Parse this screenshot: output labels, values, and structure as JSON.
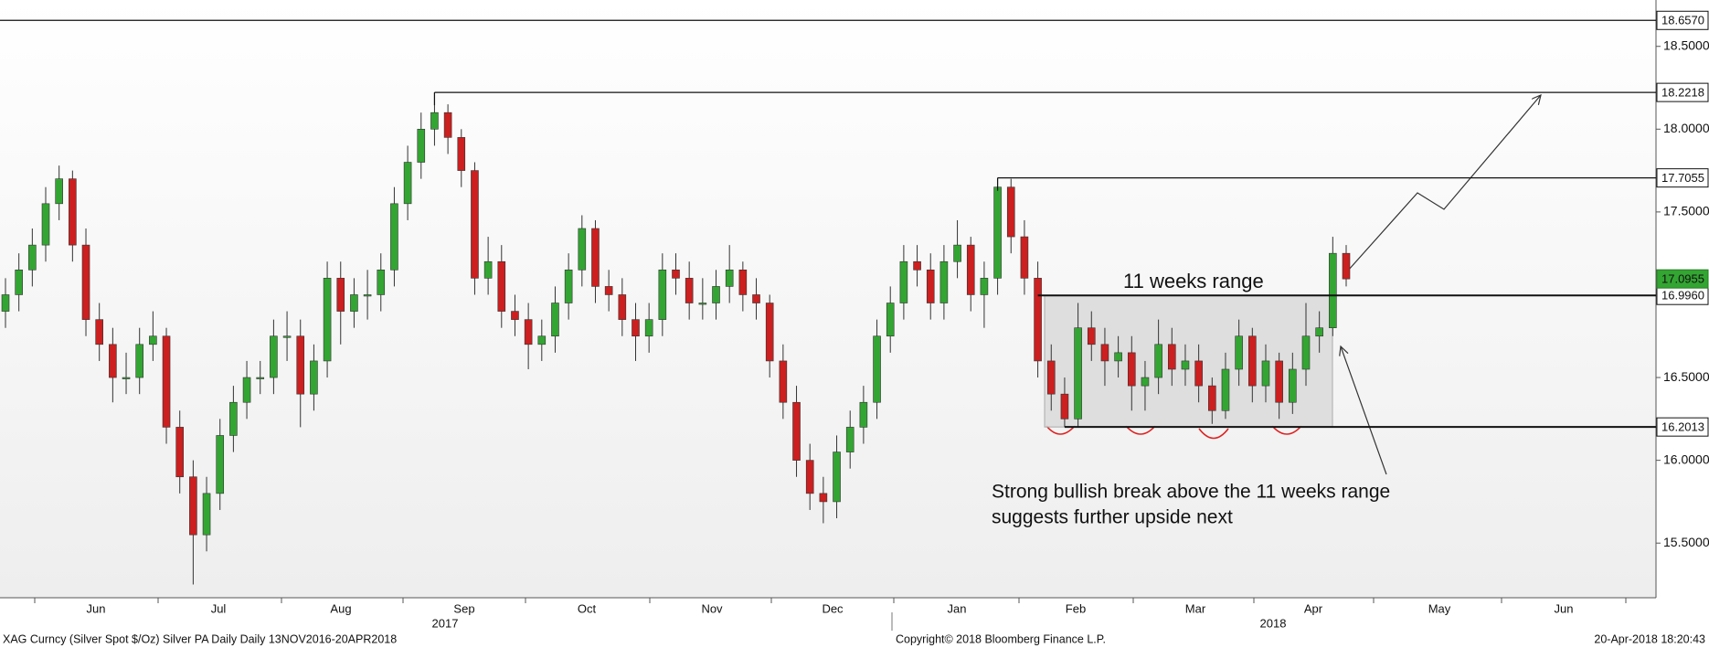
{
  "chart_data": {
    "type": "candlestick",
    "ylim": [
      15.17,
      18.78
    ],
    "yticks": [
      {
        "value": 15.5,
        "label": "15.5000"
      },
      {
        "value": 16.0,
        "label": "16.0000"
      },
      {
        "value": 16.5,
        "label": "16.5000"
      },
      {
        "value": 17.5,
        "label": "17.5000"
      },
      {
        "value": 18.0,
        "label": "18.0000"
      },
      {
        "value": 18.5,
        "label": "18.5000"
      }
    ],
    "up_color": "#33a532",
    "down_color": "#cc1f1f",
    "open": [
      16.9,
      17.0,
      17.15,
      17.3,
      17.55,
      17.7,
      17.3,
      16.85,
      16.7,
      16.5,
      16.5,
      16.7,
      16.75,
      16.2,
      15.9,
      15.55,
      15.8,
      16.15,
      16.35,
      16.5,
      16.5,
      16.75,
      16.75,
      16.4,
      16.6,
      17.1,
      16.9,
      17.0,
      17.0,
      17.15,
      17.55,
      17.8,
      18.0,
      18.1,
      17.95,
      17.75,
      17.1,
      17.2,
      16.9,
      16.85,
      16.7,
      16.75,
      16.95,
      17.15,
      17.4,
      17.05,
      17.0,
      16.85,
      16.75,
      16.85,
      17.15,
      17.1,
      16.95,
      16.95,
      17.05,
      17.15,
      17.0,
      16.95,
      16.6,
      16.35,
      16.0,
      15.8,
      15.75,
      16.05,
      16.2,
      16.35,
      16.75,
      16.95,
      17.2,
      17.15,
      16.95,
      17.2,
      17.3,
      17.0,
      17.1,
      17.65,
      17.35,
      17.1,
      16.6,
      16.4,
      16.25,
      16.8,
      16.7,
      16.6,
      16.65,
      16.45,
      16.5,
      16.7,
      16.55,
      16.6,
      16.45,
      16.3,
      16.55,
      16.75,
      16.45,
      16.6,
      16.35,
      16.55,
      16.75,
      16.8,
      17.25
    ],
    "high": [
      17.1,
      17.25,
      17.4,
      17.65,
      17.78,
      17.75,
      17.4,
      16.95,
      16.8,
      16.65,
      16.8,
      16.9,
      16.8,
      16.3,
      16.0,
      15.9,
      16.25,
      16.45,
      16.6,
      16.6,
      16.85,
      16.9,
      16.85,
      16.7,
      17.2,
      17.2,
      17.1,
      17.15,
      17.25,
      17.65,
      17.9,
      18.1,
      18.2218,
      18.15,
      18.0,
      17.8,
      17.35,
      17.3,
      17.0,
      16.95,
      16.85,
      17.05,
      17.25,
      17.48,
      17.45,
      17.15,
      17.1,
      16.95,
      16.95,
      17.25,
      17.25,
      17.2,
      17.1,
      17.15,
      17.3,
      17.2,
      17.1,
      17.0,
      16.7,
      16.45,
      16.1,
      15.9,
      16.15,
      16.3,
      16.45,
      16.85,
      17.05,
      17.3,
      17.3,
      17.25,
      17.3,
      17.45,
      17.35,
      17.2,
      17.7055,
      17.7,
      17.45,
      17.2,
      16.7,
      16.5,
      16.95,
      16.9,
      16.8,
      16.75,
      16.75,
      16.6,
      16.85,
      16.8,
      16.7,
      16.7,
      16.5,
      16.65,
      16.85,
      16.8,
      16.7,
      16.65,
      16.65,
      16.95,
      16.9,
      17.35,
      17.3
    ],
    "low": [
      16.8,
      16.9,
      17.05,
      17.2,
      17.45,
      17.2,
      16.75,
      16.6,
      16.35,
      16.4,
      16.4,
      16.6,
      16.1,
      15.8,
      15.25,
      15.45,
      15.7,
      16.05,
      16.25,
      16.4,
      16.4,
      16.6,
      16.2,
      16.3,
      16.5,
      16.7,
      16.8,
      16.85,
      16.9,
      17.05,
      17.45,
      17.7,
      17.9,
      17.85,
      17.65,
      17.0,
      17.0,
      16.8,
      16.75,
      16.55,
      16.6,
      16.65,
      16.85,
      17.05,
      16.95,
      16.9,
      16.75,
      16.6,
      16.65,
      16.75,
      17.0,
      16.85,
      16.85,
      16.85,
      16.95,
      16.9,
      16.85,
      16.5,
      16.25,
      15.9,
      15.7,
      15.62,
      15.65,
      15.95,
      16.1,
      16.25,
      16.65,
      16.85,
      17.05,
      16.85,
      16.85,
      17.1,
      16.9,
      16.8,
      17.0,
      17.25,
      17.0,
      16.5,
      16.3,
      16.2013,
      16.2,
      16.6,
      16.45,
      16.5,
      16.3,
      16.3,
      16.4,
      16.45,
      16.45,
      16.35,
      16.22,
      16.25,
      16.45,
      16.35,
      16.35,
      16.25,
      16.28,
      16.45,
      16.65,
      16.75,
      17.05
    ],
    "close": [
      17.0,
      17.15,
      17.3,
      17.55,
      17.7,
      17.3,
      16.85,
      16.7,
      16.5,
      16.5,
      16.7,
      16.75,
      16.2,
      15.9,
      15.55,
      15.8,
      16.15,
      16.35,
      16.5,
      16.5,
      16.75,
      16.75,
      16.4,
      16.6,
      17.1,
      16.9,
      17.0,
      17.0,
      17.15,
      17.55,
      17.8,
      18.0,
      18.1,
      17.95,
      17.75,
      17.1,
      17.2,
      16.9,
      16.85,
      16.7,
      16.75,
      16.95,
      17.15,
      17.4,
      17.05,
      17.0,
      16.85,
      16.75,
      16.85,
      17.15,
      17.1,
      16.95,
      16.95,
      17.05,
      17.15,
      17.0,
      16.95,
      16.6,
      16.35,
      16.0,
      15.8,
      15.75,
      16.05,
      16.2,
      16.35,
      16.75,
      16.95,
      17.2,
      17.15,
      16.95,
      17.2,
      17.3,
      17.0,
      17.1,
      17.65,
      17.35,
      17.1,
      16.6,
      16.4,
      16.25,
      16.8,
      16.7,
      16.6,
      16.65,
      16.45,
      16.5,
      16.7,
      16.55,
      16.6,
      16.45,
      16.3,
      16.55,
      16.75,
      16.45,
      16.6,
      16.35,
      16.55,
      16.75,
      16.8,
      17.25,
      17.0955
    ],
    "levels": [
      {
        "value": 18.657,
        "label": "18.6570"
      },
      {
        "value": 18.2218,
        "label": "18.2218"
      },
      {
        "value": 17.7055,
        "label": "17.7055"
      },
      {
        "value": 16.996,
        "label": "16.9960"
      },
      {
        "value": 16.2013,
        "label": "16.2013"
      }
    ],
    "last_price": {
      "value": 17.0955,
      "label": "17.0955",
      "color": "#33a532"
    },
    "x_labels": [
      "Jun",
      "Jul",
      "Aug",
      "Sep",
      "Oct",
      "Nov",
      "Dec",
      "Jan",
      "Feb",
      "Mar",
      "Apr",
      "May",
      "Jun"
    ],
    "years": [
      "2017",
      "2018"
    ],
    "annotations": [
      "11 weeks range",
      "Strong bullish break above the 11 weeks range",
      "suggests further upside next"
    ],
    "footer": {
      "left": "XAG Curncy (Silver Spot  $/Oz) Silver PA Daily  Daily 13NOV2016-20APR2018",
      "center": "Copyright© 2018 Bloomberg Finance L.P.",
      "right": "20-Apr-2018 18:20:43"
    }
  }
}
